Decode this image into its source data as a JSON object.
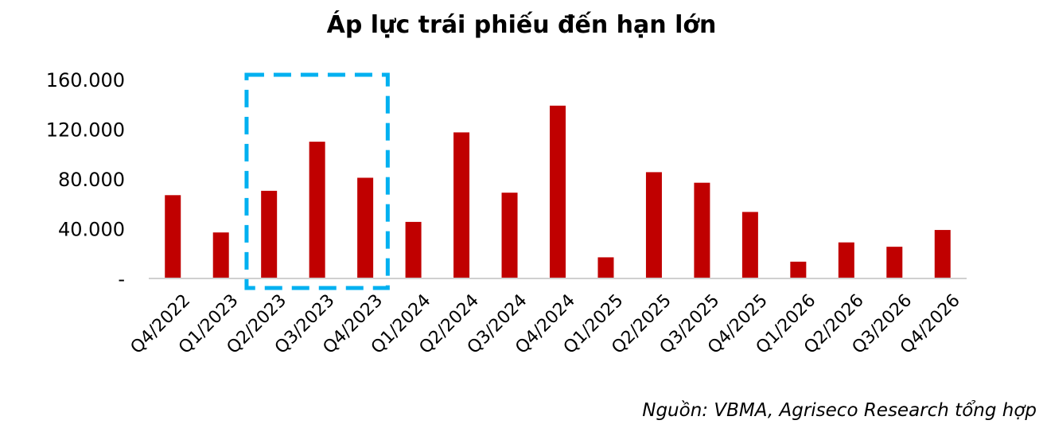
{
  "chart_data": {
    "type": "bar",
    "title": "Áp lực trái phiếu đến hạn lớn",
    "xlabel": "",
    "ylabel": "",
    "categories": [
      "Q4/2022",
      "Q1/2023",
      "Q2/2023",
      "Q3/2023",
      "Q4/2023",
      "Q1/2024",
      "Q2/2024",
      "Q3/2024",
      "Q4/2024",
      "Q1/2025",
      "Q2/2025",
      "Q3/2025",
      "Q4/2025",
      "Q1/2026",
      "Q2/2026",
      "Q3/2026",
      "Q4/2026"
    ],
    "values": [
      67000,
      37000,
      70500,
      110000,
      81000,
      45500,
      117500,
      69000,
      139000,
      17000,
      85500,
      77000,
      53500,
      13500,
      29000,
      25500,
      39000
    ],
    "ylim": [
      0,
      160000
    ],
    "y_ticks": [
      {
        "value": 0,
        "label": "-"
      },
      {
        "value": 40000,
        "label": "40.000"
      },
      {
        "value": 80000,
        "label": "80.000"
      },
      {
        "value": 120000,
        "label": "120.000"
      },
      {
        "value": 160000,
        "label": "160.000"
      }
    ],
    "grid": false,
    "bar_color": "#C00000",
    "highlight": {
      "from": "Q2/2023",
      "to": "Q4/2023",
      "color": "#00B0F0",
      "style": "dashed-box"
    },
    "source": "Nguồn: VBMA, Agriseco Research tổng hợp"
  }
}
